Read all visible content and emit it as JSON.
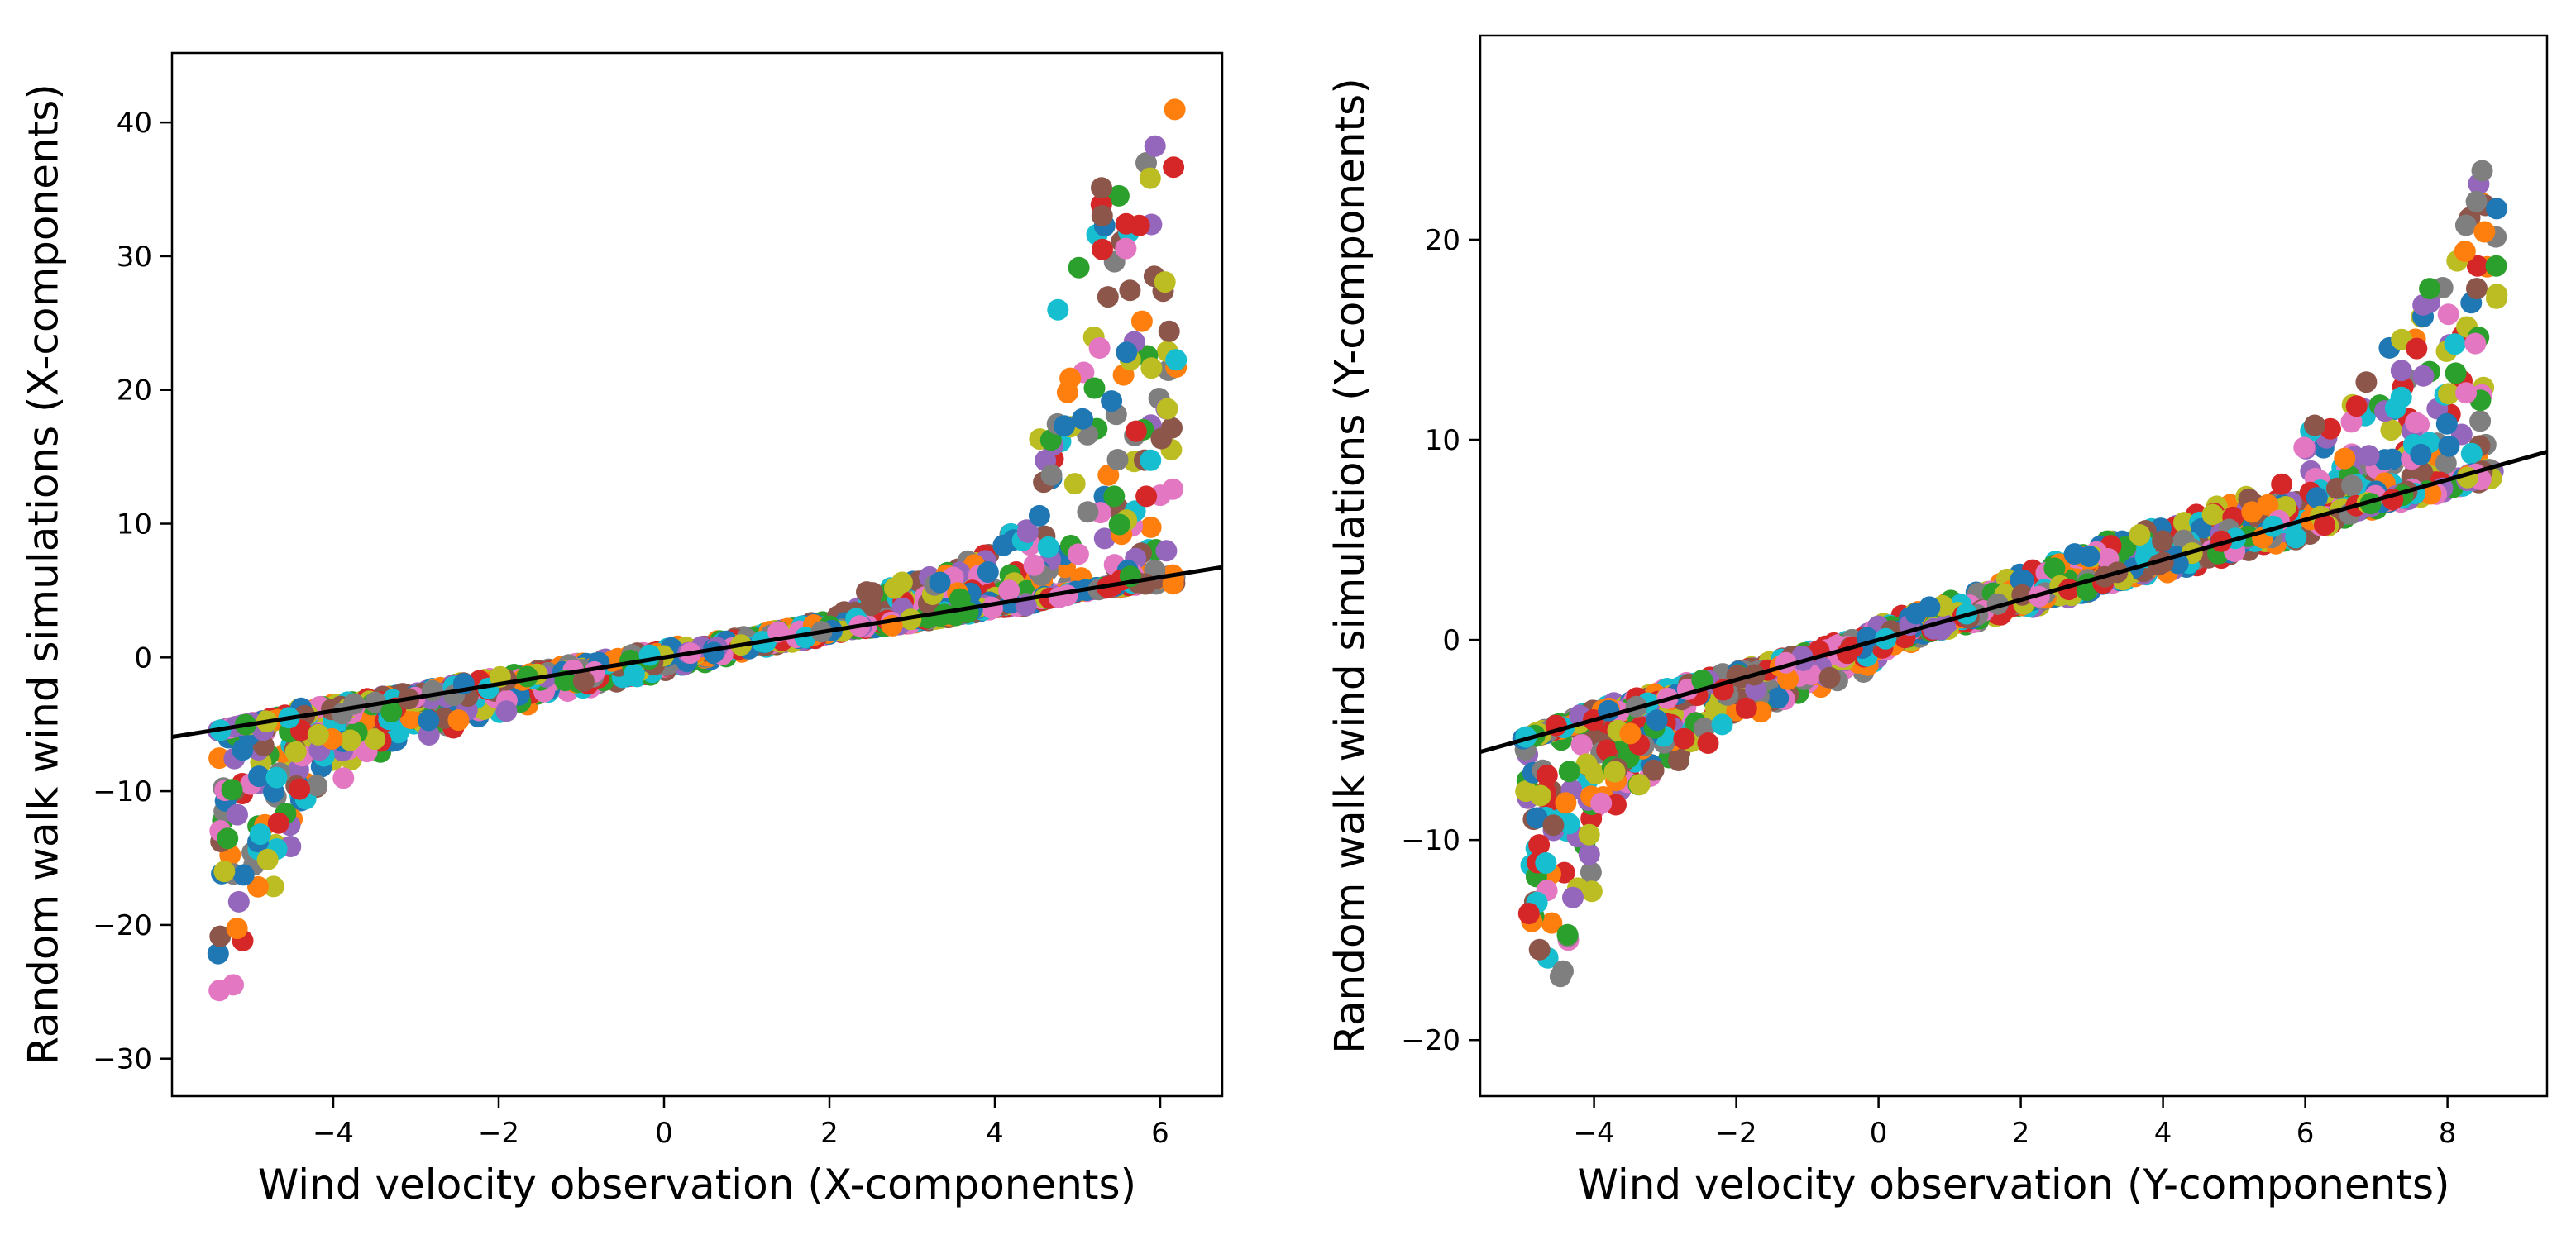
{
  "palette": [
    "#1f77b4",
    "#ff7f0e",
    "#2ca02c",
    "#d62728",
    "#9467bd",
    "#8c564b",
    "#e377c2",
    "#7f7f7f",
    "#bcbd22",
    "#17becf"
  ],
  "chart_data": [
    {
      "type": "scatter",
      "title": "",
      "xlabel": "Wind velocity observation (X-components)",
      "ylabel": "Random walk wind simulations (X-components)",
      "xlim": [
        -5.95,
        6.75
      ],
      "ylim": [
        -32.8,
        45.2
      ],
      "xticks": [
        -4,
        -2,
        0,
        2,
        4,
        6
      ],
      "yticks": [
        -30,
        -20,
        -10,
        0,
        10,
        20,
        30,
        40
      ],
      "grid": false,
      "legend": "none",
      "reference_line": {
        "slope": 1,
        "intercept": 0,
        "color": "#000000"
      },
      "series_count": 10,
      "spread_profile": [
        {
          "x": -5.4,
          "low": -29.2,
          "high": -5.5
        },
        {
          "x": -5.2,
          "low": -27.2,
          "high": -5.2
        },
        {
          "x": -5.0,
          "low": -24.5,
          "high": -4.9
        },
        {
          "x": -4.8,
          "low": -20.0,
          "high": -4.6
        },
        {
          "x": -4.6,
          "low": -16.5,
          "high": -4.3
        },
        {
          "x": -4.4,
          "low": -13.5,
          "high": -3.8
        },
        {
          "x": -4.1,
          "low": -9.8,
          "high": -3.6
        },
        {
          "x": -3.0,
          "low": -6.6,
          "high": -2.5
        },
        {
          "x": -2.0,
          "low": -4.3,
          "high": -1.4
        },
        {
          "x": -1.0,
          "low": -2.4,
          "high": -0.4
        },
        {
          "x": 0.0,
          "low": -1.2,
          "high": 0.7
        },
        {
          "x": 1.0,
          "low": 0.4,
          "high": 1.6
        },
        {
          "x": 2.0,
          "low": 1.6,
          "high": 3.0
        },
        {
          "x": 2.3,
          "low": 2.0,
          "high": 3.7
        },
        {
          "x": 2.4,
          "low": 2.0,
          "high": 5.0
        },
        {
          "x": 3.0,
          "low": 2.4,
          "high": 5.8
        },
        {
          "x": 3.5,
          "low": 3.0,
          "high": 6.8
        },
        {
          "x": 4.0,
          "low": 3.6,
          "high": 8.2
        },
        {
          "x": 4.4,
          "low": 3.8,
          "high": 10.5
        },
        {
          "x": 4.6,
          "low": 4.2,
          "high": 25.0
        },
        {
          "x": 5.0,
          "low": 4.8,
          "high": 32.5
        },
        {
          "x": 5.4,
          "low": 5.2,
          "high": 37.0
        },
        {
          "x": 5.8,
          "low": 5.3,
          "high": 39.5
        },
        {
          "x": 6.2,
          "low": 5.5,
          "high": 41.5
        }
      ]
    },
    {
      "type": "scatter",
      "title": "",
      "xlabel": "Wind velocity observation (Y-components)",
      "ylabel": "Random walk wind simulations (Y-components)",
      "xlim": [
        -5.6,
        9.4
      ],
      "ylim": [
        -22.8,
        30.2
      ],
      "xticks": [
        -4,
        -2,
        0,
        2,
        4,
        6,
        8
      ],
      "yticks": [
        -20,
        -10,
        0,
        10,
        20
      ],
      "grid": false,
      "legend": "none",
      "reference_line": {
        "slope": 1,
        "intercept": 0,
        "color": "#000000"
      },
      "series_count": 10,
      "spread_profile": [
        {
          "x": -5.0,
          "low": -20.3,
          "high": -4.8
        },
        {
          "x": -4.8,
          "low": -19.0,
          "high": -4.6
        },
        {
          "x": -4.5,
          "low": -17.8,
          "high": -4.2
        },
        {
          "x": -4.1,
          "low": -14.7,
          "high": -3.6
        },
        {
          "x": -3.8,
          "low": -9.5,
          "high": -3.2
        },
        {
          "x": -3.0,
          "low": -6.8,
          "high": -2.4
        },
        {
          "x": -2.0,
          "low": -4.2,
          "high": -1.5
        },
        {
          "x": -1.0,
          "low": -2.8,
          "high": -0.6
        },
        {
          "x": -0.1,
          "low": -1.6,
          "high": 0.5
        },
        {
          "x": 0.1,
          "low": -0.6,
          "high": 1.0
        },
        {
          "x": 1.0,
          "low": 0.5,
          "high": 2.0
        },
        {
          "x": 2.0,
          "low": 1.4,
          "high": 3.3
        },
        {
          "x": 3.0,
          "low": 2.4,
          "high": 4.7
        },
        {
          "x": 4.0,
          "low": 3.3,
          "high": 5.8
        },
        {
          "x": 5.0,
          "low": 4.0,
          "high": 7.0
        },
        {
          "x": 5.5,
          "low": 4.5,
          "high": 7.5
        },
        {
          "x": 6.0,
          "low": 5.0,
          "high": 10.5
        },
        {
          "x": 6.5,
          "low": 6.0,
          "high": 11.5
        },
        {
          "x": 7.0,
          "low": 6.5,
          "high": 13.5
        },
        {
          "x": 7.5,
          "low": 7.0,
          "high": 16.5
        },
        {
          "x": 8.0,
          "low": 7.4,
          "high": 19.0
        },
        {
          "x": 8.5,
          "low": 7.8,
          "high": 24.8
        },
        {
          "x": 8.7,
          "low": 8.0,
          "high": 27.5
        }
      ]
    }
  ]
}
